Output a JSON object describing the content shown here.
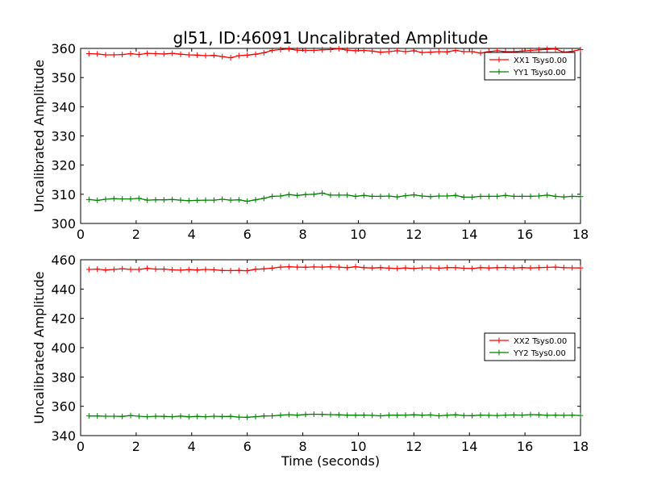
{
  "figure": {
    "title": "gl51, ID:46091 Uncalibrated Amplitude",
    "xlabel": "Time (seconds)"
  },
  "chart_data": [
    {
      "type": "line",
      "title": "gl51, ID:46091 Uncalibrated Amplitude",
      "xlabel": "",
      "ylabel": "Uncalibrated Amplitude",
      "xlim": [
        0,
        18
      ],
      "ylim": [
        300,
        360
      ],
      "xticks": [
        0,
        2,
        4,
        6,
        8,
        10,
        12,
        14,
        16,
        18
      ],
      "yticks": [
        300,
        310,
        320,
        330,
        340,
        350,
        360
      ],
      "grid": false,
      "legend_position": "top-right",
      "x": [
        0.3,
        0.6,
        0.9,
        1.2,
        1.5,
        1.8,
        2.1,
        2.4,
        2.7,
        3.0,
        3.3,
        3.6,
        3.9,
        4.2,
        4.5,
        4.8,
        5.1,
        5.4,
        5.7,
        6.0,
        6.3,
        6.6,
        6.9,
        7.2,
        7.5,
        7.8,
        8.1,
        8.4,
        8.7,
        9.0,
        9.3,
        9.6,
        9.9,
        10.2,
        10.5,
        10.8,
        11.1,
        11.4,
        11.7,
        12.0,
        12.3,
        12.6,
        12.9,
        13.2,
        13.5,
        13.8,
        14.1,
        14.4,
        14.7,
        15.0,
        15.3,
        15.6,
        15.9,
        16.2,
        16.5,
        16.8,
        17.1,
        17.4,
        17.7,
        18.0
      ],
      "series": [
        {
          "name": "XX1 Tsys0.00",
          "color": "#ff0000",
          "values": [
            358.2,
            358.1,
            357.8,
            357.8,
            357.9,
            358.2,
            357.9,
            358.3,
            358.2,
            358.1,
            358.3,
            358.0,
            357.8,
            357.7,
            357.5,
            357.6,
            357.2,
            356.8,
            357.5,
            357.7,
            358.0,
            358.5,
            359.3,
            359.6,
            359.8,
            359.4,
            359.3,
            359.3,
            359.5,
            359.6,
            359.9,
            359.4,
            359.2,
            359.3,
            359.1,
            358.7,
            358.9,
            359.2,
            358.9,
            359.2,
            358.6,
            358.7,
            358.9,
            358.8,
            359.3,
            358.9,
            358.9,
            358.4,
            358.9,
            359.2,
            358.9,
            358.9,
            359.1,
            359.3,
            359.5,
            359.7,
            359.8,
            358.7,
            359.0,
            359.6
          ]
        },
        {
          "name": "YY1 Tsys0.00",
          "color": "#008000",
          "values": [
            308.2,
            307.9,
            308.3,
            308.5,
            308.4,
            308.4,
            308.6,
            308.0,
            308.1,
            308.1,
            308.2,
            308.0,
            307.8,
            307.9,
            308.0,
            308.0,
            308.3,
            308.0,
            308.1,
            307.6,
            308.1,
            308.6,
            309.3,
            309.4,
            309.9,
            309.6,
            309.9,
            310.0,
            310.4,
            309.7,
            309.7,
            309.7,
            309.3,
            309.6,
            309.3,
            309.3,
            309.4,
            309.1,
            309.5,
            309.8,
            309.4,
            309.2,
            309.4,
            309.4,
            309.6,
            309.0,
            309.0,
            309.3,
            309.3,
            309.3,
            309.6,
            309.3,
            309.3,
            309.3,
            309.4,
            309.7,
            309.3,
            309.1,
            309.3,
            309.2
          ]
        }
      ]
    },
    {
      "type": "line",
      "title": "",
      "xlabel": "Time (seconds)",
      "ylabel": "Uncalibrated Amplitude",
      "xlim": [
        0,
        18
      ],
      "ylim": [
        340,
        460
      ],
      "xticks": [
        0,
        2,
        4,
        6,
        8,
        10,
        12,
        14,
        16,
        18
      ],
      "yticks": [
        340,
        360,
        380,
        400,
        420,
        440,
        460
      ],
      "grid": false,
      "legend_position": "center-right",
      "x": [
        0.3,
        0.6,
        0.9,
        1.2,
        1.5,
        1.8,
        2.1,
        2.4,
        2.7,
        3.0,
        3.3,
        3.6,
        3.9,
        4.2,
        4.5,
        4.8,
        5.1,
        5.4,
        5.7,
        6.0,
        6.3,
        6.6,
        6.9,
        7.2,
        7.5,
        7.8,
        8.1,
        8.4,
        8.7,
        9.0,
        9.3,
        9.6,
        9.9,
        10.2,
        10.5,
        10.8,
        11.1,
        11.4,
        11.7,
        12.0,
        12.3,
        12.6,
        12.9,
        13.2,
        13.5,
        13.8,
        14.1,
        14.4,
        14.7,
        15.0,
        15.3,
        15.6,
        15.9,
        16.2,
        16.5,
        16.8,
        17.1,
        17.4,
        17.7,
        18.0
      ],
      "series": [
        {
          "name": "XX2 Tsys0.00",
          "color": "#ff0000",
          "values": [
            453.4,
            453.6,
            453.0,
            453.4,
            453.9,
            453.4,
            453.4,
            454.1,
            453.6,
            453.6,
            453.1,
            452.9,
            453.3,
            453.0,
            453.4,
            453.2,
            452.7,
            452.6,
            452.7,
            452.5,
            453.5,
            453.8,
            454.3,
            455.0,
            455.2,
            455.0,
            454.9,
            455.1,
            455.0,
            455.2,
            455.0,
            454.6,
            455.2,
            454.6,
            454.4,
            454.6,
            454.3,
            454.0,
            454.4,
            454.0,
            454.5,
            454.5,
            454.2,
            454.6,
            454.6,
            454.2,
            454.0,
            454.6,
            454.4,
            454.6,
            454.7,
            454.4,
            454.6,
            454.4,
            454.6,
            454.8,
            455.0,
            454.6,
            454.5,
            454.4
          ]
        },
        {
          "name": "YY2 Tsys0.00",
          "color": "#008000",
          "values": [
            353.4,
            353.4,
            353.2,
            353.2,
            353.1,
            353.7,
            353.2,
            352.9,
            353.2,
            353.1,
            352.9,
            353.3,
            352.8,
            353.1,
            352.9,
            353.2,
            353.0,
            353.1,
            352.6,
            352.5,
            352.9,
            353.4,
            353.5,
            353.9,
            354.3,
            353.9,
            354.4,
            354.6,
            354.5,
            354.3,
            354.2,
            353.9,
            353.9,
            354.0,
            353.8,
            353.5,
            353.9,
            353.9,
            354.0,
            354.2,
            353.9,
            354.1,
            353.5,
            353.9,
            354.2,
            353.7,
            353.6,
            354.0,
            353.8,
            353.7,
            354.0,
            354.1,
            354.0,
            354.3,
            354.2,
            353.8,
            354.0,
            353.8,
            354.0,
            353.7
          ]
        }
      ]
    }
  ]
}
